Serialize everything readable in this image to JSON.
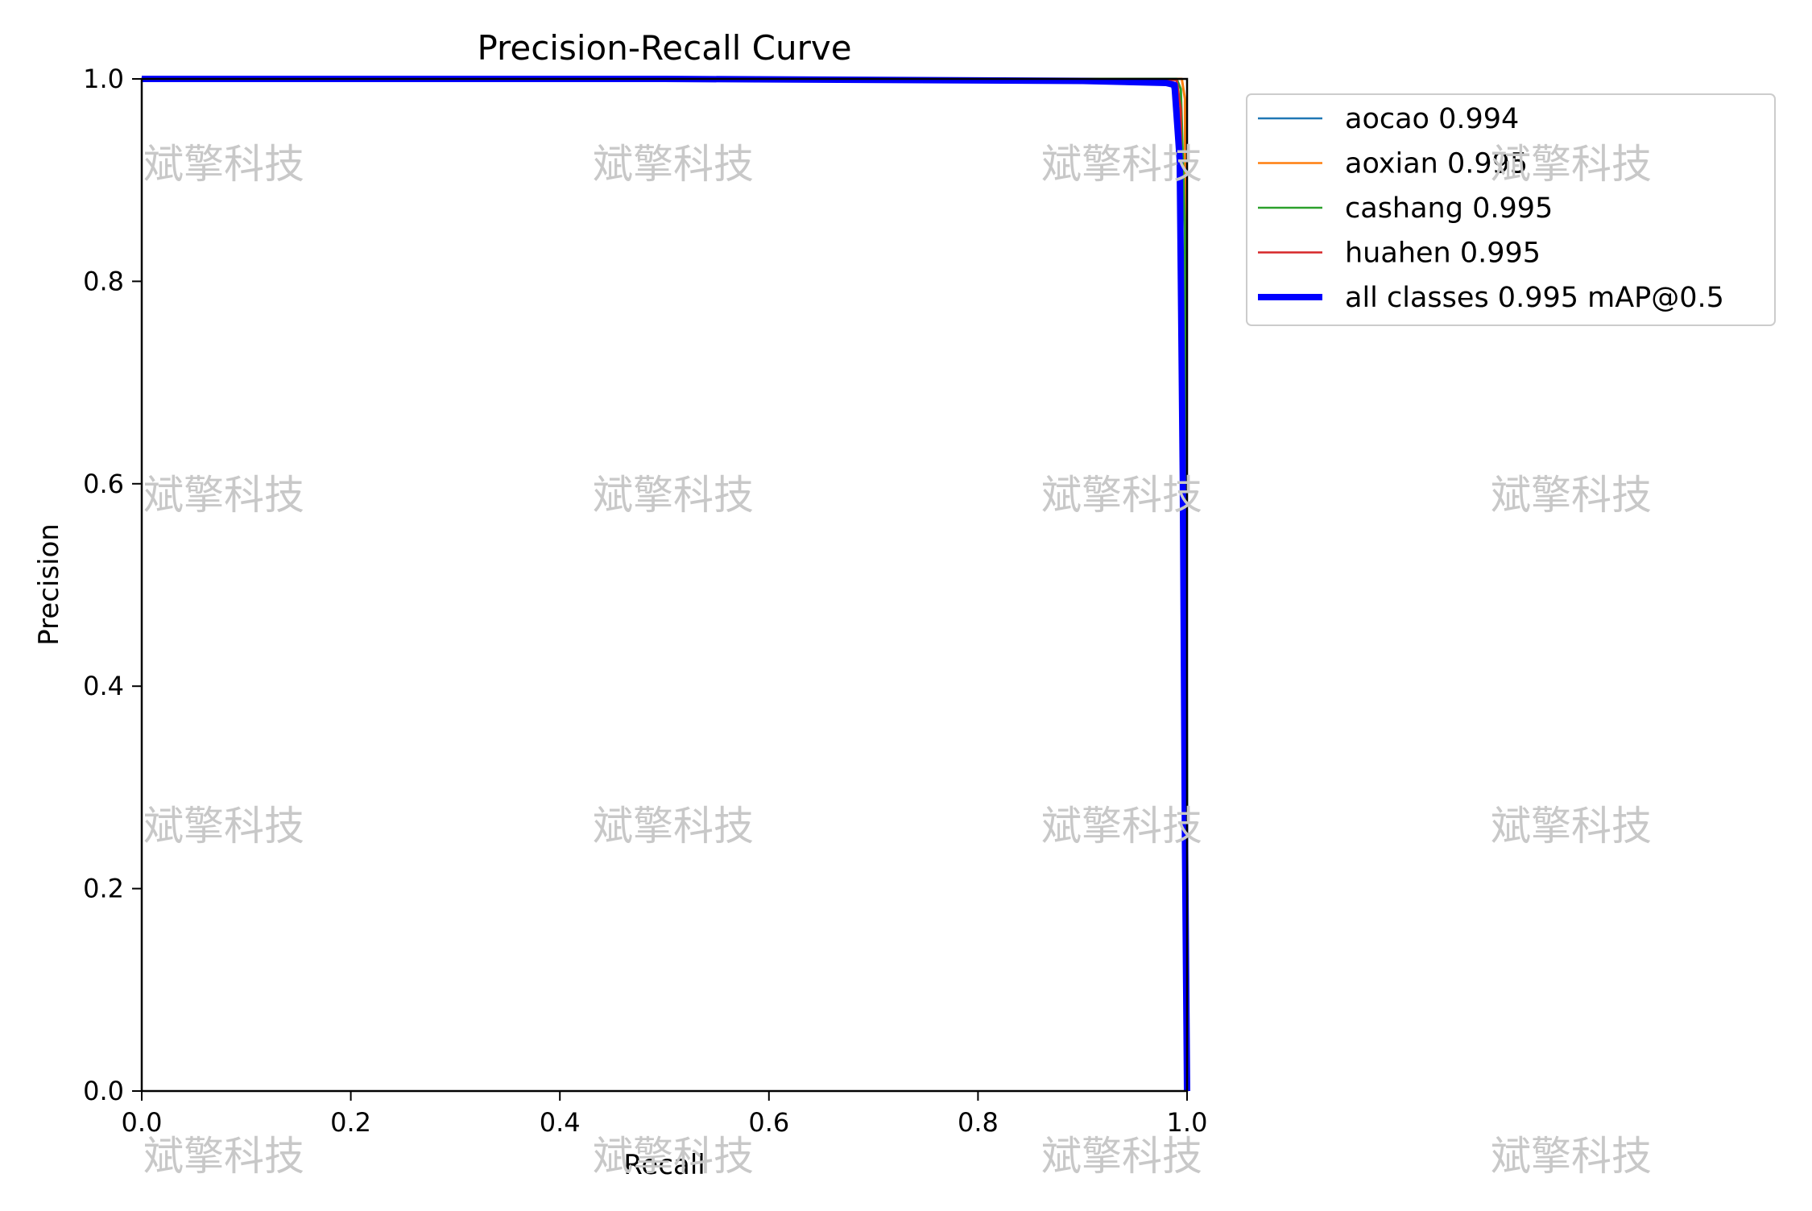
{
  "chart_data": {
    "type": "line",
    "title": "Precision-Recall Curve",
    "xlabel": "Recall",
    "ylabel": "Precision",
    "xlim": [
      0.0,
      1.0
    ],
    "ylim": [
      0.0,
      1.0
    ],
    "xticks": [
      "0.0",
      "0.2",
      "0.4",
      "0.6",
      "0.8",
      "1.0"
    ],
    "yticks": [
      "0.0",
      "0.2",
      "0.4",
      "0.6",
      "0.8",
      "1.0"
    ],
    "grid": false,
    "legend_position": "outside-right-top",
    "series": [
      {
        "name": "aocao 0.994",
        "color": "#1f77b4",
        "x": [
          0.0,
          0.5,
          0.9,
          0.985,
          0.992,
          0.996,
          1.0,
          1.0
        ],
        "y": [
          1.0,
          1.0,
          0.997,
          0.995,
          0.97,
          0.7,
          0.2,
          0.0
        ]
      },
      {
        "name": "aoxian 0.995",
        "color": "#ff7f0e",
        "x": [
          0.0,
          0.5,
          0.9,
          0.995,
          0.998,
          0.999,
          1.0
        ],
        "y": [
          1.0,
          1.0,
          1.0,
          1.0,
          0.98,
          0.5,
          0.0
        ]
      },
      {
        "name": "cashang 0.995",
        "color": "#2ca02c",
        "x": [
          0.0,
          0.5,
          0.99,
          0.994,
          0.998,
          1.0,
          1.0
        ],
        "y": [
          1.0,
          1.0,
          1.0,
          0.99,
          0.85,
          0.3,
          0.0
        ]
      },
      {
        "name": "huahen 0.995",
        "color": "#d62728",
        "x": [
          0.0,
          0.5,
          0.99,
          0.994,
          0.996,
          0.998,
          1.0
        ],
        "y": [
          1.0,
          1.0,
          0.999,
          0.97,
          0.5,
          0.2,
          0.0
        ]
      },
      {
        "name": "all classes 0.995 mAP@0.5",
        "color": "#0000ff",
        "x": [
          0.0,
          0.5,
          0.9,
          0.98,
          0.988,
          0.993,
          0.996,
          0.998,
          1.0
        ],
        "y": [
          1.0,
          1.0,
          0.998,
          0.996,
          0.994,
          0.92,
          0.6,
          0.25,
          0.0
        ]
      }
    ]
  },
  "watermark_text": "斌擎科技"
}
